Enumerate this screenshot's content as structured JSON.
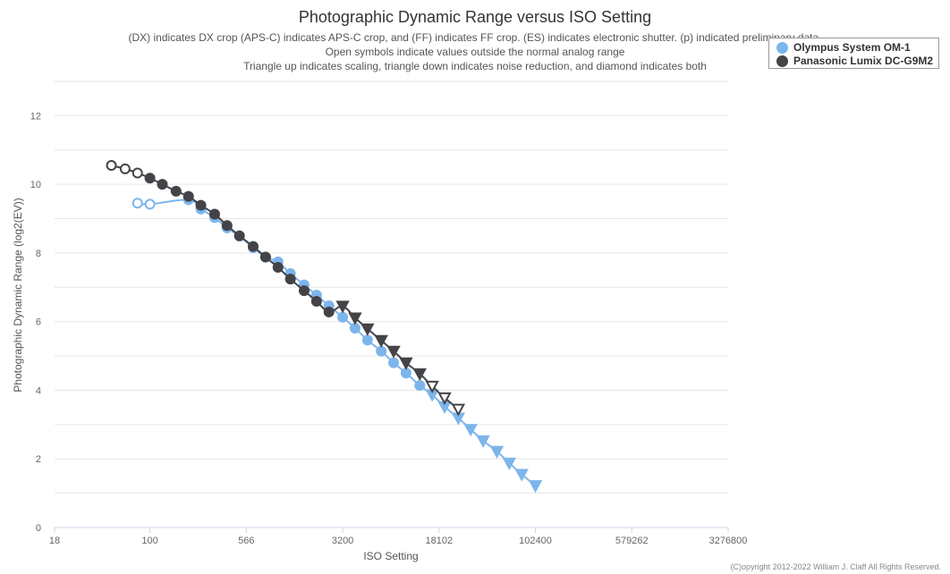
{
  "chart_data": {
    "type": "line",
    "title": "Photographic Dynamic Range versus ISO Setting",
    "subtitle": [
      "(DX) indicates DX crop (APS-C) indicates APS-C crop, and (FF) indicates FF crop. (ES) indicates electronic shutter. (p) indicated preliminary data.",
      "Open symbols indicate values outside the normal analog range",
      "Triangle up indicates scaling, triangle down indicates noise reduction, and diamond indicates both"
    ],
    "xlabel": "ISO Setting",
    "ylabel": "Photographic Dynamic Range (log2(EV))",
    "x_scale": "log",
    "x_ticks": [
      "18",
      "100",
      "566",
      "3200",
      "18102",
      "102400",
      "579262",
      "3276800"
    ],
    "xlim": [
      18,
      3276800
    ],
    "y_ticks": [
      0,
      2,
      4,
      6,
      8,
      10,
      12
    ],
    "ylim": [
      0,
      13
    ],
    "grid": true,
    "legend_position": "top-right",
    "credit": "(C)opyright 2012-2022 William J. Claff All Rights Reserved.",
    "series": [
      {
        "name": "Olympus System OM-1",
        "color": "#7cb5ec",
        "points": [
          {
            "x": 80,
            "y": 9.45,
            "marker": "open-circle"
          },
          {
            "x": 100,
            "y": 9.42,
            "marker": "open-circle"
          },
          {
            "x": 200,
            "y": 9.55,
            "marker": "circle"
          },
          {
            "x": 250,
            "y": 9.28,
            "marker": "circle"
          },
          {
            "x": 320,
            "y": 9.03,
            "marker": "circle"
          },
          {
            "x": 400,
            "y": 8.73,
            "marker": "circle"
          },
          {
            "x": 500,
            "y": 8.49,
            "marker": "circle"
          },
          {
            "x": 640,
            "y": 8.15,
            "marker": "circle"
          },
          {
            "x": 800,
            "y": 7.88,
            "marker": "circle"
          },
          {
            "x": 1000,
            "y": 7.74,
            "marker": "circle"
          },
          {
            "x": 1250,
            "y": 7.4,
            "marker": "circle"
          },
          {
            "x": 1600,
            "y": 7.07,
            "marker": "circle"
          },
          {
            "x": 2000,
            "y": 6.77,
            "marker": "circle"
          },
          {
            "x": 2500,
            "y": 6.46,
            "marker": "circle"
          },
          {
            "x": 3200,
            "y": 6.13,
            "marker": "circle"
          },
          {
            "x": 4000,
            "y": 5.81,
            "marker": "circle"
          },
          {
            "x": 5000,
            "y": 5.46,
            "marker": "circle"
          },
          {
            "x": 6400,
            "y": 5.14,
            "marker": "circle"
          },
          {
            "x": 8000,
            "y": 4.8,
            "marker": "circle"
          },
          {
            "x": 10000,
            "y": 4.5,
            "marker": "circle"
          },
          {
            "x": 12800,
            "y": 4.14,
            "marker": "circle"
          },
          {
            "x": 16000,
            "y": 3.87,
            "marker": "triangle-down"
          },
          {
            "x": 20000,
            "y": 3.52,
            "marker": "triangle-down"
          },
          {
            "x": 25600,
            "y": 3.19,
            "marker": "triangle-down"
          },
          {
            "x": 32000,
            "y": 2.86,
            "marker": "triangle-down"
          },
          {
            "x": 40000,
            "y": 2.53,
            "marker": "triangle-down"
          },
          {
            "x": 51200,
            "y": 2.22,
            "marker": "triangle-down"
          },
          {
            "x": 64000,
            "y": 1.88,
            "marker": "triangle-down"
          },
          {
            "x": 80000,
            "y": 1.55,
            "marker": "triangle-down"
          },
          {
            "x": 102400,
            "y": 1.22,
            "marker": "triangle-down"
          }
        ]
      },
      {
        "name": "Panasonic Lumix DC-G9M2",
        "color": "#434348",
        "points": [
          {
            "x": 50,
            "y": 10.55,
            "marker": "open-circle"
          },
          {
            "x": 64,
            "y": 10.45,
            "marker": "open-circle"
          },
          {
            "x": 80,
            "y": 10.33,
            "marker": "open-circle"
          },
          {
            "x": 100,
            "y": 10.18,
            "marker": "circle"
          },
          {
            "x": 125,
            "y": 10.0,
            "marker": "circle"
          },
          {
            "x": 160,
            "y": 9.8,
            "marker": "circle"
          },
          {
            "x": 200,
            "y": 9.65,
            "marker": "circle"
          },
          {
            "x": 250,
            "y": 9.39,
            "marker": "circle"
          },
          {
            "x": 320,
            "y": 9.13,
            "marker": "circle"
          },
          {
            "x": 400,
            "y": 8.8,
            "marker": "circle"
          },
          {
            "x": 500,
            "y": 8.5,
            "marker": "circle"
          },
          {
            "x": 640,
            "y": 8.19,
            "marker": "circle"
          },
          {
            "x": 800,
            "y": 7.88,
            "marker": "circle"
          },
          {
            "x": 1000,
            "y": 7.58,
            "marker": "circle"
          },
          {
            "x": 1250,
            "y": 7.24,
            "marker": "circle"
          },
          {
            "x": 1600,
            "y": 6.9,
            "marker": "circle"
          },
          {
            "x": 2000,
            "y": 6.59,
            "marker": "circle"
          },
          {
            "x": 2500,
            "y": 6.28,
            "marker": "circle"
          },
          {
            "x": 3200,
            "y": 6.45,
            "marker": "triangle-down"
          },
          {
            "x": 4000,
            "y": 6.11,
            "marker": "triangle-down"
          },
          {
            "x": 5000,
            "y": 5.79,
            "marker": "triangle-down"
          },
          {
            "x": 6400,
            "y": 5.45,
            "marker": "triangle-down"
          },
          {
            "x": 8000,
            "y": 5.14,
            "marker": "triangle-down"
          },
          {
            "x": 10000,
            "y": 4.8,
            "marker": "triangle-down"
          },
          {
            "x": 12800,
            "y": 4.48,
            "marker": "triangle-down"
          },
          {
            "x": 16000,
            "y": 4.12,
            "marker": "open-triangle-down"
          },
          {
            "x": 20000,
            "y": 3.78,
            "marker": "open-triangle-down"
          },
          {
            "x": 25600,
            "y": 3.45,
            "marker": "open-triangle-down"
          }
        ]
      }
    ]
  }
}
